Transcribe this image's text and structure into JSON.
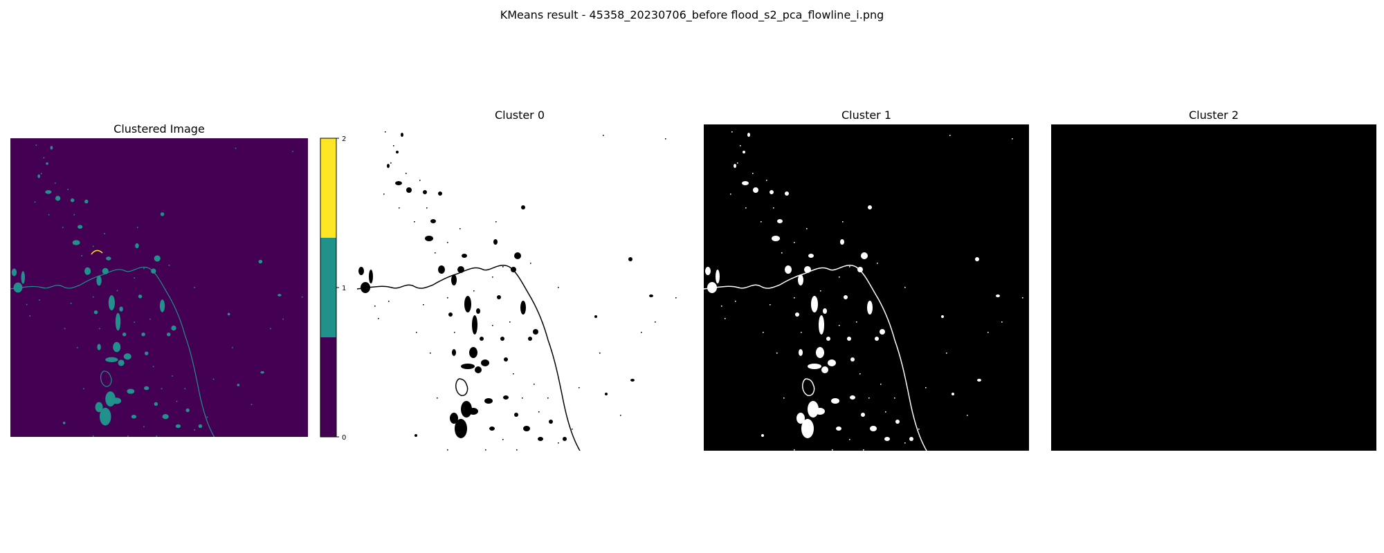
{
  "figure": {
    "suptitle": "KMeans result - 45358_20230706_before flood_s2_pca_flowline_i.png"
  },
  "panels": [
    {
      "title": "Clustered Image"
    },
    {
      "title": "Cluster 0"
    },
    {
      "title": "Cluster 1"
    },
    {
      "title": "Cluster 2"
    }
  ],
  "colorbar": {
    "ticks": [
      "0",
      "1",
      "2"
    ],
    "colors": [
      "#440154",
      "#21918c",
      "#fde725"
    ]
  },
  "colors": {
    "background_cluster": "#440154",
    "water_cluster": "#21918c",
    "minor_cluster": "#fde725",
    "mask_on": "#ffffff",
    "mask_off": "#000000"
  }
}
